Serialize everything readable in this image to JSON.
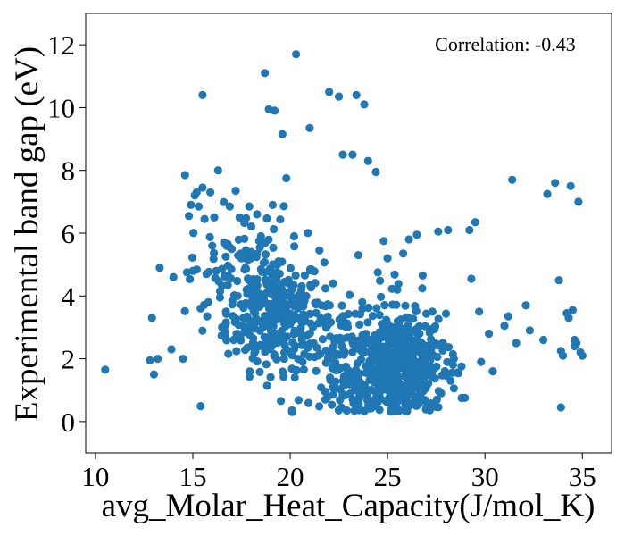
{
  "chart_data": {
    "type": "scatter",
    "title": "",
    "xlabel": "avg_Molar_Heat_Capacity(J/mol_K)",
    "ylabel": "Experimental band gap (eV)",
    "annotation": "Correlation: -0.43",
    "xlim": [
      9.5,
      36.5
    ],
    "ylim": [
      -1,
      13
    ],
    "xticks": [
      10,
      15,
      20,
      25,
      30,
      35
    ],
    "yticks": [
      0,
      2,
      4,
      6,
      8,
      10,
      12
    ],
    "grid": false,
    "legend": "none",
    "marker_color": "#1f77b4",
    "series": [
      {
        "points": [
          [
            10.5,
            1.65
          ],
          [
            12.8,
            1.95
          ],
          [
            12.9,
            3.3
          ],
          [
            13.0,
            1.5
          ],
          [
            13.2,
            2.0
          ],
          [
            13.3,
            4.9
          ],
          [
            13.9,
            2.3
          ],
          [
            14.0,
            4.6
          ],
          [
            14.5,
            2.0
          ],
          [
            14.6,
            7.85
          ],
          [
            14.7,
            4.75
          ],
          [
            14.8,
            6.55
          ],
          [
            14.9,
            6.9
          ],
          [
            15.0,
            4.8
          ],
          [
            15.1,
            7.2
          ],
          [
            15.2,
            7.3
          ],
          [
            15.3,
            6.85
          ],
          [
            15.4,
            3.6
          ],
          [
            15.5,
            7.45
          ],
          [
            15.6,
            6.45
          ],
          [
            15.5,
            10.4
          ],
          [
            15.7,
            4.7
          ],
          [
            15.8,
            3.8
          ],
          [
            15.9,
            7.3
          ],
          [
            16.0,
            5.6
          ],
          [
            16.1,
            6.5
          ],
          [
            16.2,
            4.8
          ],
          [
            16.3,
            8.0
          ],
          [
            16.4,
            4.15
          ],
          [
            16.5,
            3.0
          ],
          [
            16.6,
            5.7
          ],
          [
            16.7,
            3.5
          ],
          [
            16.8,
            4.35
          ],
          [
            16.9,
            6.85
          ],
          [
            17.0,
            5.5
          ],
          [
            17.1,
            2.6
          ],
          [
            17.2,
            7.35
          ],
          [
            17.3,
            4.0
          ],
          [
            17.4,
            6.5
          ],
          [
            17.5,
            5.2
          ],
          [
            17.6,
            3.3
          ],
          [
            17.7,
            4.9
          ],
          [
            17.8,
            2.9
          ],
          [
            17.9,
            6.85
          ],
          [
            18.0,
            5.4
          ],
          [
            18.1,
            4.5
          ],
          [
            18.2,
            3.75
          ],
          [
            18.3,
            6.6
          ],
          [
            18.4,
            2.4
          ],
          [
            18.5,
            5.9
          ],
          [
            18.6,
            3.0
          ],
          [
            18.7,
            11.1
          ],
          [
            18.8,
            4.1
          ],
          [
            18.9,
            9.95
          ],
          [
            19.0,
            3.4
          ],
          [
            19.1,
            6.9
          ],
          [
            19.2,
            9.9
          ],
          [
            19.3,
            2.8
          ],
          [
            19.4,
            5.1
          ],
          [
            19.5,
            3.9
          ],
          [
            19.6,
            9.15
          ],
          [
            19.7,
            2.2
          ],
          [
            19.8,
            7.75
          ],
          [
            19.9,
            4.4
          ],
          [
            20.0,
            3.1
          ],
          [
            20.1,
            0.3
          ],
          [
            20.2,
            5.9
          ],
          [
            20.3,
            11.7
          ],
          [
            20.4,
            2.0
          ],
          [
            20.5,
            4.0
          ],
          [
            20.7,
            3.3
          ],
          [
            21.0,
            9.35
          ],
          [
            21.2,
            2.5
          ],
          [
            21.5,
            5.45
          ],
          [
            21.6,
            3.7
          ],
          [
            21.8,
            0.95
          ],
          [
            22.0,
            10.5
          ],
          [
            22.2,
            4.4
          ],
          [
            22.4,
            2.6
          ],
          [
            22.5,
            10.35
          ],
          [
            22.7,
            8.5
          ],
          [
            22.9,
            1.2
          ],
          [
            23.2,
            8.5
          ],
          [
            23.4,
            10.4
          ],
          [
            23.5,
            5.3
          ],
          [
            23.7,
            3.8
          ],
          [
            23.8,
            10.1
          ],
          [
            24.0,
            8.3
          ],
          [
            24.1,
            0.55
          ],
          [
            24.4,
            7.95
          ],
          [
            24.5,
            4.75
          ],
          [
            24.8,
            5.75
          ],
          [
            25.0,
            5.2
          ],
          [
            25.2,
            0.4
          ],
          [
            25.5,
            4.2
          ],
          [
            25.8,
            5.35
          ],
          [
            26.1,
            5.8
          ],
          [
            26.3,
            0.6
          ],
          [
            26.5,
            5.95
          ],
          [
            26.8,
            4.65
          ],
          [
            27.3,
            3.5
          ],
          [
            27.6,
            6.05
          ],
          [
            28.1,
            6.1
          ],
          [
            28.4,
            2.0
          ],
          [
            28.8,
            0.75
          ],
          [
            29.2,
            6.1
          ],
          [
            29.3,
            4.55
          ],
          [
            29.5,
            6.35
          ],
          [
            29.7,
            3.5
          ],
          [
            29.8,
            1.9
          ],
          [
            30.2,
            2.8
          ],
          [
            30.4,
            1.6
          ],
          [
            31.0,
            3.05
          ],
          [
            31.2,
            3.35
          ],
          [
            31.4,
            7.7
          ],
          [
            31.6,
            2.5
          ],
          [
            32.1,
            3.7
          ],
          [
            32.3,
            2.9
          ],
          [
            33.0,
            2.6
          ],
          [
            33.2,
            7.25
          ],
          [
            33.6,
            7.6
          ],
          [
            33.8,
            4.5
          ],
          [
            33.9,
            0.45
          ],
          [
            34.0,
            2.1
          ],
          [
            34.2,
            3.45
          ],
          [
            34.3,
            3.3
          ],
          [
            34.4,
            7.5
          ],
          [
            34.5,
            3.55
          ],
          [
            34.6,
            2.6
          ],
          [
            34.7,
            2.5
          ],
          [
            34.8,
            7.0
          ],
          [
            34.9,
            2.2
          ],
          [
            35.0,
            2.1
          ],
          [
            33.9,
            2.25
          ],
          [
            34.6,
            2.4
          ]
        ],
        "clusters": [
          {
            "cx": 19.2,
            "cy": 3.5,
            "sx": 1.25,
            "sy": 0.9,
            "n": 260
          },
          {
            "cx": 25.2,
            "cy": 1.7,
            "sx": 1.35,
            "sy": 0.85,
            "n": 520
          },
          {
            "cx": 22.5,
            "cy": 2.3,
            "sx": 2.2,
            "sy": 1.0,
            "n": 130
          },
          {
            "cx": 17.5,
            "cy": 4.8,
            "sx": 1.3,
            "sy": 1.0,
            "n": 70
          }
        ]
      }
    ]
  }
}
